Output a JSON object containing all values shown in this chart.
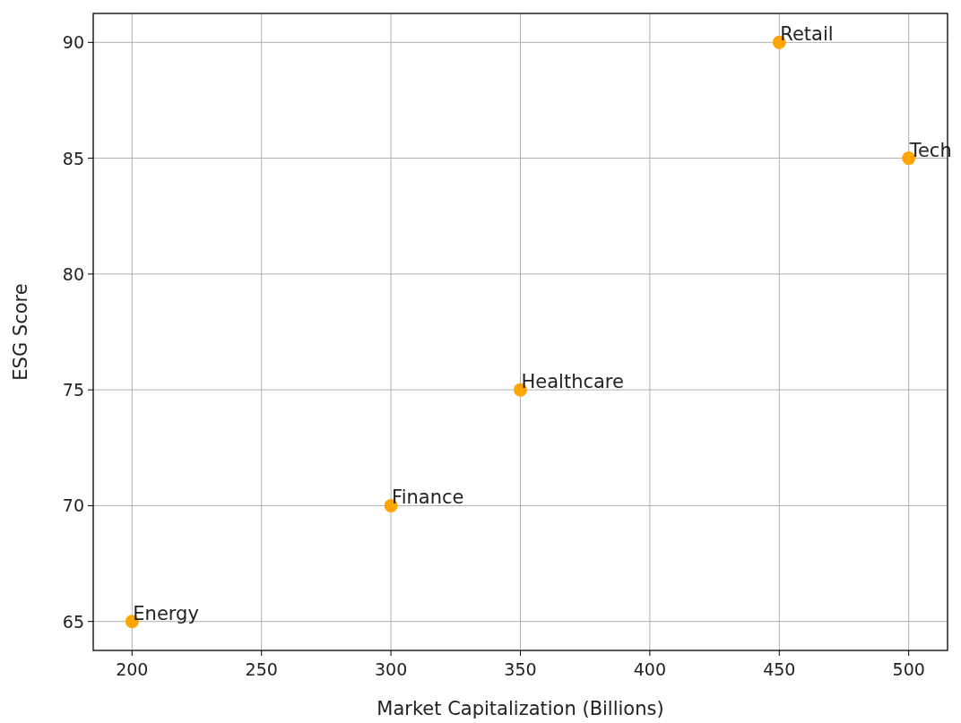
{
  "chart_data": {
    "type": "scatter",
    "xlabel": "Market Capitalization (Billions)",
    "ylabel": "ESG Score",
    "x": [
      500,
      350,
      300,
      200,
      450
    ],
    "values": [
      85,
      75,
      70,
      65,
      90
    ],
    "color": "#ffa500",
    "marker": "circle",
    "xlim": [
      185,
      515
    ],
    "ylim": [
      63.75,
      91.25
    ],
    "xticks": [
      200,
      250,
      300,
      350,
      400,
      450,
      500
    ],
    "yticks": [
      65,
      70,
      75,
      80,
      85,
      90
    ],
    "grid": true,
    "annotations": [
      {
        "text": "Tech",
        "x": 500,
        "y": 85
      },
      {
        "text": "Healthcare",
        "x": 350,
        "y": 75
      },
      {
        "text": "Finance",
        "x": 300,
        "y": 70
      },
      {
        "text": "Energy",
        "x": 200,
        "y": 65
      },
      {
        "text": "Retail",
        "x": 450,
        "y": 90
      }
    ]
  }
}
